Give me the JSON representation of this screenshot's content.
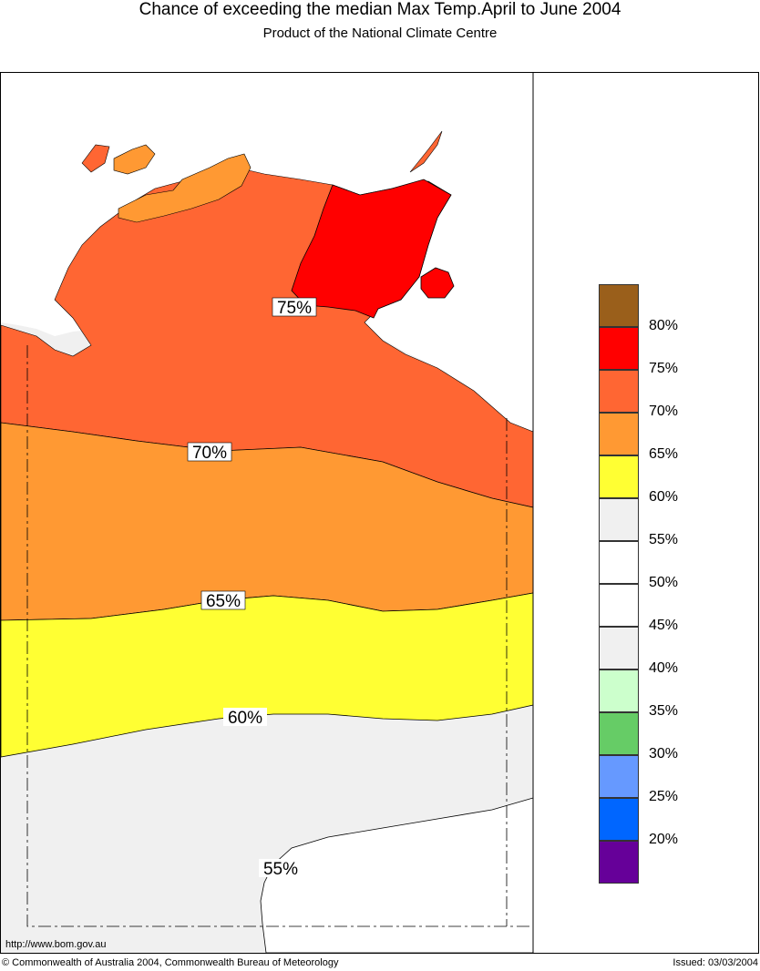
{
  "header": {
    "title": "Chance of exceeding the median Max Temp.April to June 2004",
    "subtitle": "Product of the National Climate Centre"
  },
  "map": {
    "contour_labels": [
      "75%",
      "70%",
      "65%",
      "60%",
      "55%"
    ],
    "url": "http://www.bom.gov.au"
  },
  "legend": {
    "colors": [
      "#9a5f1b",
      "#ff0000",
      "#ff6633",
      "#ff9933",
      "#ffff33",
      "#f0f0f0",
      "#ffffff",
      "#ffffff",
      "#f0f0f0",
      "#ccffcc",
      "#66cc66",
      "#6699ff",
      "#0066ff",
      "#660099"
    ],
    "labels": [
      "80%",
      "75%",
      "70%",
      "65%",
      "60%",
      "55%",
      "50%",
      "45%",
      "40%",
      "35%",
      "30%",
      "25%",
      "20%"
    ]
  },
  "footer": {
    "copyright": "© Commonwealth of Australia 2004, Commonwealth Bureau of Meteorology",
    "issued": "Issued: 03/03/2004"
  }
}
